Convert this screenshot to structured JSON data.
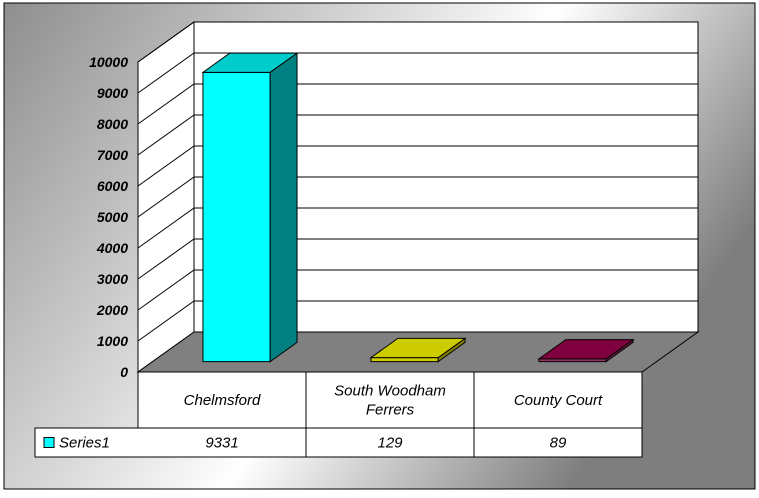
{
  "chart_data": {
    "type": "bar",
    "title": "",
    "xlabel": "",
    "ylabel": "",
    "categories": [
      {
        "lines": [
          "Chelmsford"
        ]
      },
      {
        "lines": [
          "South Woodham",
          "Ferrers"
        ]
      },
      {
        "lines": [
          "County Court"
        ]
      }
    ],
    "series": [
      {
        "name": "Series1",
        "values": [
          9331,
          129,
          89
        ]
      }
    ],
    "value_labels": [
      "9331",
      "129",
      "89"
    ],
    "yticks": [
      "0",
      "1000",
      "2000",
      "3000",
      "4000",
      "5000",
      "6000",
      "7000",
      "8000",
      "9000",
      "10000"
    ],
    "ylim": [
      0,
      10000
    ],
    "grid": true,
    "legend": "data-table",
    "bar_colors": [
      {
        "front": "#00ffff",
        "side": "#008080",
        "top": "#00cccc"
      },
      {
        "front": "#cccc00",
        "side": "#808000",
        "top": "#cccc00"
      },
      {
        "front": "#993366",
        "side": "#661a40",
        "top": "#800040"
      }
    ],
    "legend_swatch_color": "#00ffff",
    "floor_color": "#808080"
  }
}
